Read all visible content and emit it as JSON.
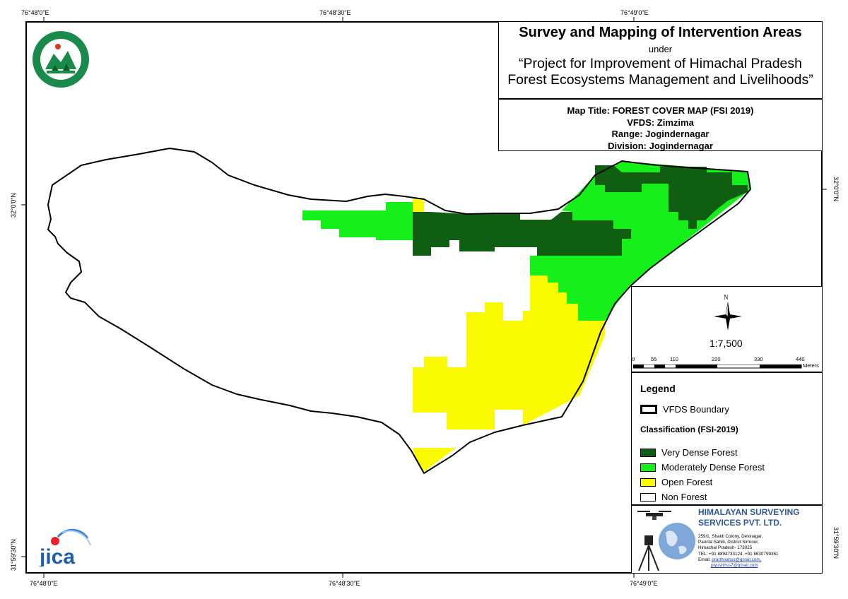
{
  "coords": {
    "top": [
      "76°48'0\"E",
      "76°48'30\"E",
      "76°49'0\"E"
    ],
    "bottom": [
      "76°48'0\"E",
      "76°48'30\"E",
      "76°49'0\"E"
    ],
    "left": [
      "32°0'0\"N",
      "31°59'30\"N"
    ],
    "right": [
      "32°0'0\"N",
      "31°59'30\"N"
    ]
  },
  "title": {
    "main": "Survey and Mapping of Intervention Areas",
    "under": "under",
    "project_line1": "“Project for Improvement of Himachal Pradesh",
    "project_line2": "Forest Ecosystems Management and Livelihoods”"
  },
  "info": {
    "map_title": "Map Title: FOREST COVER MAP (FSI 2019)",
    "vfds": "VFDS: Zimzima",
    "range": "Range: Jogindernagar",
    "division": "Division: Jogindernagar"
  },
  "scale": {
    "north": "N",
    "ratio": "1:7,500",
    "ticks": [
      "0",
      "55",
      "110",
      "220",
      "330",
      "440"
    ],
    "unit": "Meters"
  },
  "legend": {
    "title": "Legend",
    "boundary": "VFDS Boundary",
    "classification_title": "Classification (FSI-2019)",
    "classes": [
      {
        "label": "Very Dense Forest",
        "color": "#0f5e12"
      },
      {
        "label": "Moderately Dense Forest",
        "color": "#16f01a"
      },
      {
        "label": "Open Forest",
        "color": "#fbfb00"
      },
      {
        "label": "Non Forest",
        "color": "#ffffff"
      }
    ]
  },
  "company": {
    "name_line1": "HIMALAYAN SURVEYING",
    "name_line2": "SERVICES PVT. LTD.",
    "address_lines": [
      "259/1, Shakti Colony, Devinagar,",
      "Paonta Sahib, District Sirmour,",
      "Himachal Pradesh- 173025",
      "TEL: +91 8894733124, +91 8630799361"
    ],
    "email_label": "Email:",
    "email1": "prarthnahss@gmail.com,",
    "email2": "piyushhss7@gmail.com"
  },
  "logos": {
    "top_left": "Himachal Pradesh Forest Department emblem",
    "jica_text": "jica"
  }
}
